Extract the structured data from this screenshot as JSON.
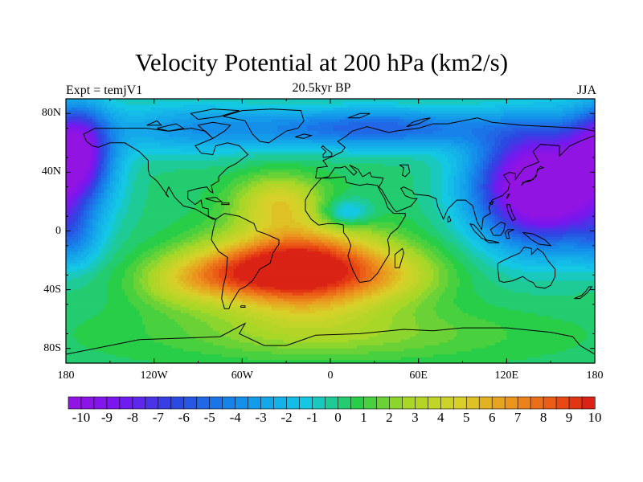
{
  "header": {
    "title": "Velocity Potential at 200 hPa (km2/s)",
    "left_label": "Expt = temjV1",
    "center_label": "20.5kyr BP",
    "right_label": "JJA"
  },
  "chart_data": {
    "type": "heatmap",
    "projection": "cylindrical-equidistant",
    "title": "Velocity Potential at 200 hPa (km2/s)",
    "x_ticks": [
      "180",
      "120W",
      "60W",
      "0",
      "60E",
      "120E",
      "180"
    ],
    "x_values": [
      -180,
      -120,
      -60,
      0,
      60,
      120,
      180
    ],
    "y_ticks": [
      "80N",
      "40N",
      "0",
      "40S",
      "80S"
    ],
    "y_values": [
      80,
      40,
      0,
      -40,
      -80
    ],
    "xlim": [
      -180,
      180
    ],
    "ylim": [
      -90,
      90
    ],
    "colorbar_labels": [
      "-10",
      "-9",
      "-8",
      "-7",
      "-6",
      "-5",
      "-4",
      "-3",
      "-2",
      "-1",
      "0",
      "1",
      "2",
      "3",
      "4",
      "5",
      "6",
      "7",
      "8",
      "9",
      "10"
    ],
    "colorbar_range": [
      -10,
      10
    ],
    "colorbar_levels": 41,
    "features": [
      {
        "kind": "max",
        "lon": -20,
        "lat": -25,
        "value": 10
      },
      {
        "kind": "min",
        "lon": 140,
        "lat": 30,
        "value": -10
      },
      {
        "kind": "min",
        "lon": -170,
        "lat": 55,
        "value": -10
      }
    ]
  },
  "colors": {
    "background": "#ffffff",
    "coastline": "#000000",
    "frame": "#000000"
  }
}
